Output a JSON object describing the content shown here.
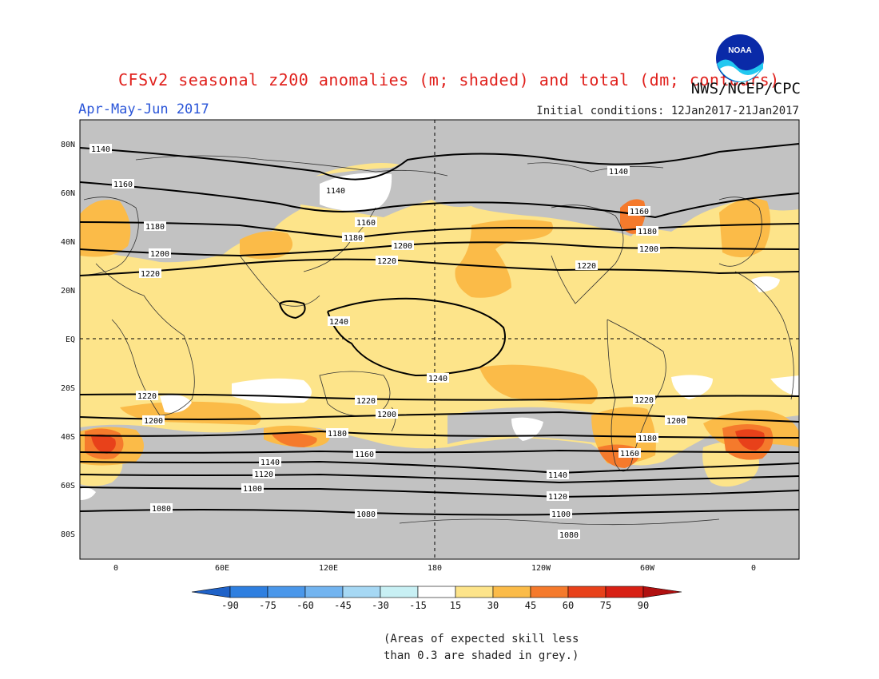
{
  "header": {
    "title": "CFSv2 seasonal z200 anomalies (m; shaded) and total (dm; contours)",
    "agency": "NWS/NCEP/CPC",
    "season": "Apr-May-Jun 2017",
    "initial_conditions": "Initial conditions: 12Jan2017-21Jan2017",
    "logo_text": "NOAA"
  },
  "map": {
    "projection": "equirectangular",
    "lon_range": [
      -20,
      380
    ],
    "lat_range": [
      -90,
      90
    ],
    "grid": "dashed at equator and 180",
    "lat_labels": [
      "80N",
      "60N",
      "40N",
      "20N",
      "EQ",
      "20S",
      "40S",
      "60S",
      "80S"
    ],
    "lon_labels": [
      "0",
      "60E",
      "120E",
      "180",
      "120W",
      "60W",
      "0"
    ],
    "colors": {
      "grey_low_skill": "#c2c2c2",
      "anom_15_30": "#fde48a",
      "anom_30_45": "#fbbb48",
      "anom_45_60": "#f57a2c",
      "anom_60_75": "#e8411a",
      "neutral": "#ffffff"
    },
    "contour_labels": {
      "row_1140_n": [
        "1140",
        "1140",
        "1140"
      ],
      "row_1160_n": [
        "1160",
        "1160",
        "1160"
      ],
      "row_1180_n": [
        "1180",
        "1180",
        "1180"
      ],
      "row_1200_n": [
        "1200",
        "1200",
        "1200"
      ],
      "row_1220_n": [
        "1220",
        "1220",
        "1220"
      ],
      "tropics": [
        "1240",
        "1240"
      ],
      "row_1220_s": [
        "1220",
        "1220",
        "1220"
      ],
      "row_1200_s": [
        "1200",
        "1200",
        "1200"
      ],
      "row_1180_s": [
        "1180",
        "1180"
      ],
      "row_1160_s": [
        "1160",
        "1160"
      ],
      "row_1140_s": [
        "1140",
        "1140"
      ],
      "row_1120_s": [
        "1120",
        "1120"
      ],
      "row_1100_s": [
        "1100",
        "1100"
      ],
      "row_1080_s": [
        "1080",
        "1080",
        "1080"
      ]
    }
  },
  "colorbar": {
    "ticks": [
      "-90",
      "-75",
      "-60",
      "-45",
      "-30",
      "-15",
      "15",
      "30",
      "45",
      "60",
      "75",
      "90"
    ],
    "colors": [
      "#1f62c8",
      "#2e7fe0",
      "#4a97ea",
      "#72b4f0",
      "#a6d8f4",
      "#c8f0f4",
      "#ffffff",
      "#fde48a",
      "#fbbb48",
      "#f57a2c",
      "#e8411a",
      "#d82014",
      "#b01010"
    ]
  },
  "footnote": {
    "line1": "(Areas of expected skill less",
    "line2": "than 0.3 are shaded in grey.)"
  }
}
